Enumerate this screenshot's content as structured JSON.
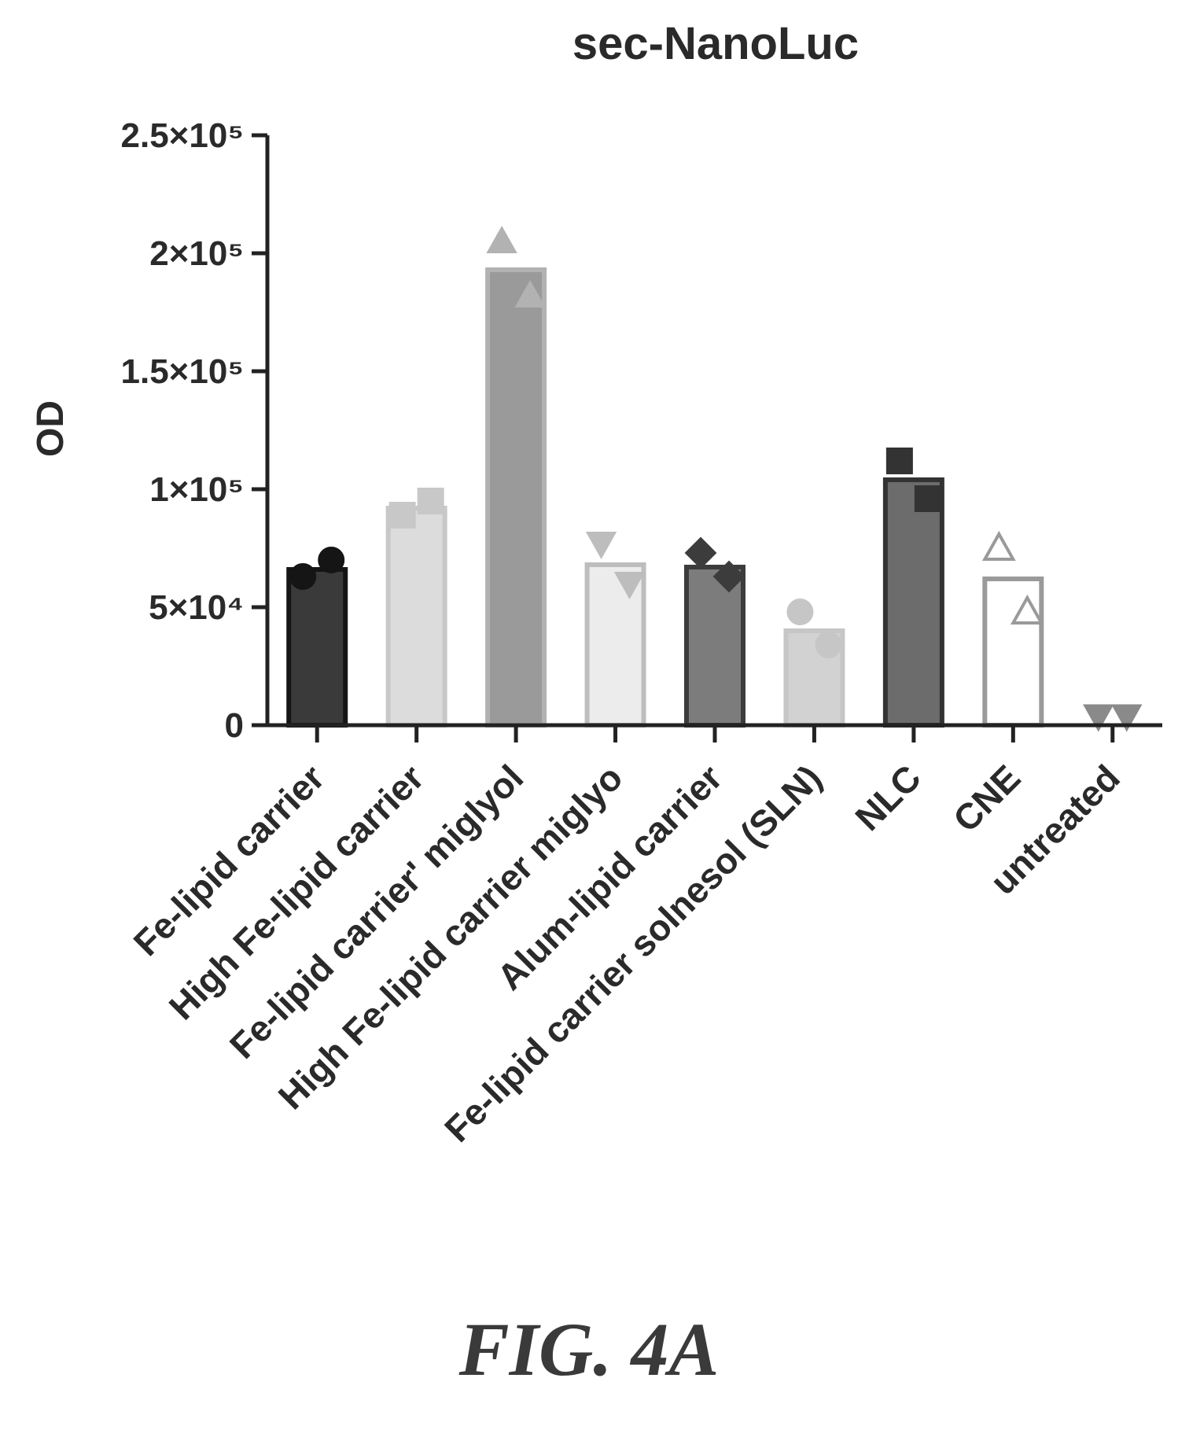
{
  "chart_data": {
    "type": "bar",
    "title": "sec-NanoLuc",
    "ylabel": "OD",
    "xlabel": "",
    "ylim": [
      0,
      250000
    ],
    "yticks": [
      {
        "value": 0,
        "label": "0"
      },
      {
        "value": 50000,
        "label": "5×10⁴"
      },
      {
        "value": 100000,
        "label": "1×10⁵"
      },
      {
        "value": 150000,
        "label": "1.5×10⁵"
      },
      {
        "value": 200000,
        "label": "2×10⁵"
      },
      {
        "value": 250000,
        "label": "2.5×10⁵"
      }
    ],
    "categories": [
      "Fe-lipid carrier",
      "High Fe-lipid carrier",
      "Fe-lipid carrier' miglyol",
      "High Fe-lipid carrier miglyo",
      "Alum-lipid carrier",
      "Fe-lipid carrier solnesol (SLN)",
      "NLC",
      "CNE",
      "untreated"
    ],
    "values": [
      66000,
      92000,
      193000,
      68000,
      67000,
      40000,
      104000,
      62000,
      0
    ],
    "points": [
      [
        63000,
        70000
      ],
      [
        89000,
        95000
      ],
      [
        205000,
        182000
      ],
      [
        77000,
        60000
      ],
      [
        73000,
        63000
      ],
      [
        48000,
        34000
      ],
      [
        112000,
        96000
      ],
      [
        75000,
        48000
      ],
      [
        500,
        500
      ]
    ],
    "markers": [
      "circle",
      "square",
      "triangle-up",
      "triangle-down",
      "diamond",
      "circle",
      "square",
      "triangle-up-open",
      "triangle-down"
    ],
    "colors": {
      "fill": [
        "#3a3a3a",
        "#dcdcdc",
        "#9a9a9a",
        "#ececec",
        "#7c7c7c",
        "#d2d2d2",
        "#6c6c6c",
        "#ffffff",
        "#8a8a8a"
      ],
      "edge": [
        "#151515",
        "#c8c8c8",
        "#b2b2b2",
        "#bdbdbd",
        "#3c3c3c",
        "#c6c6c6",
        "#333333",
        "#9a9a9a",
        "#8a8a8a"
      ]
    },
    "grid": false,
    "legend": "none"
  },
  "figure_label": "FIG. 4A"
}
